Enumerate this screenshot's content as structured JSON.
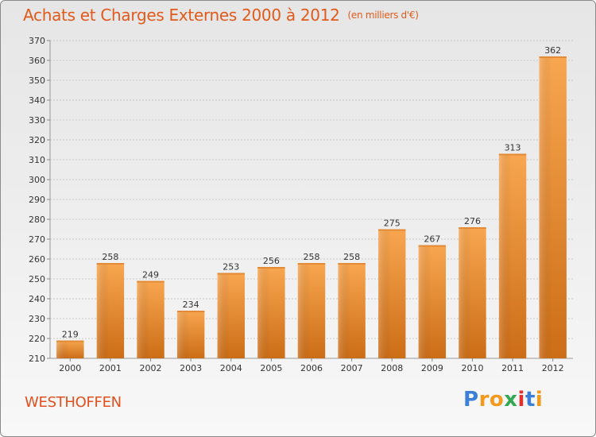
{
  "title": "Achats et Charges Externes 2000 à 2012",
  "subtitle": "(en milliers d'€)",
  "commune": "WESTHOFFEN",
  "logo": {
    "letters": [
      "P",
      "r",
      "o",
      "x",
      "i",
      "t",
      "i"
    ],
    "colors": [
      "#3d7fd6",
      "#f39a1e",
      "#f39a1e",
      "#33a852",
      "#e3322d",
      "#3d7fd6",
      "#f39a1e"
    ]
  },
  "colors": {
    "title": "#e05a1c",
    "bar_light": "#f7a24d",
    "bar_dark": "#c96b17",
    "grid": "#c8c8c8"
  },
  "chart_data": {
    "type": "bar",
    "title": "Achats et Charges Externes 2000 à 2012",
    "subtitle": "(en milliers d'€)",
    "categories": [
      "2000",
      "2001",
      "2002",
      "2003",
      "2004",
      "2005",
      "2006",
      "2007",
      "2008",
      "2009",
      "2010",
      "2011",
      "2012"
    ],
    "values": [
      219,
      258,
      249,
      234,
      253,
      256,
      258,
      258,
      275,
      267,
      276,
      313,
      362
    ],
    "ylim": [
      210,
      370
    ],
    "yticks": [
      210,
      220,
      230,
      240,
      250,
      260,
      270,
      280,
      290,
      300,
      310,
      320,
      330,
      340,
      350,
      360,
      370
    ],
    "grid": true,
    "data_labels": true
  }
}
